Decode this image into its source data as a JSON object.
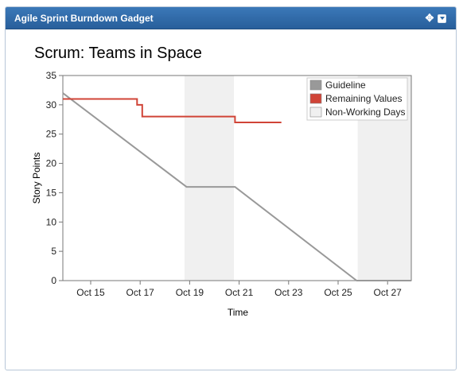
{
  "gadget": {
    "title": "Agile Sprint Burndown Gadget",
    "move_icon": "move-icon",
    "menu_icon": "dropdown-menu-icon",
    "header_color": "#2f6aa8"
  },
  "chart_data": {
    "type": "line",
    "title": "Scrum: Teams in Space",
    "xlabel": "Time",
    "ylabel": "Story Points",
    "ylim": [
      0,
      35
    ],
    "yticks": [
      0,
      5,
      10,
      15,
      20,
      25,
      30,
      35
    ],
    "xlim": [
      "Oct 13 21:00",
      "Oct 27 23:00"
    ],
    "xticks": [
      "Oct 15",
      "Oct 17",
      "Oct 19",
      "Oct 21",
      "Oct 23",
      "Oct 25",
      "Oct 27"
    ],
    "legend_placement": "top-right",
    "grid": false,
    "series": [
      {
        "name": "Guideline",
        "color": "#999999",
        "points": [
          [
            "Oct 13 21:00",
            32
          ],
          [
            "Oct 18 21:00",
            16
          ],
          [
            "Oct 20 20:00",
            16
          ],
          [
            "Oct 25 18:00",
            0
          ],
          [
            "Oct 27 23:00",
            0
          ]
        ]
      },
      {
        "name": "Remaining Values",
        "color": "#d04437",
        "step": true,
        "points": [
          [
            "Oct 13 21:00",
            31
          ],
          [
            "Oct 16 21:00",
            30
          ],
          [
            "Oct 17 02:00",
            28
          ],
          [
            "Oct 20 20:00",
            27
          ],
          [
            "Oct 22 17:00",
            27
          ]
        ]
      }
    ],
    "non_working_days": {
      "name": "Non-Working Days",
      "color": "#f0f0f0",
      "ranges": [
        [
          "Oct 18 19:00",
          "Oct 20 19:00"
        ],
        [
          "Oct 25 19:00",
          "Oct 27 23:00"
        ]
      ]
    }
  }
}
